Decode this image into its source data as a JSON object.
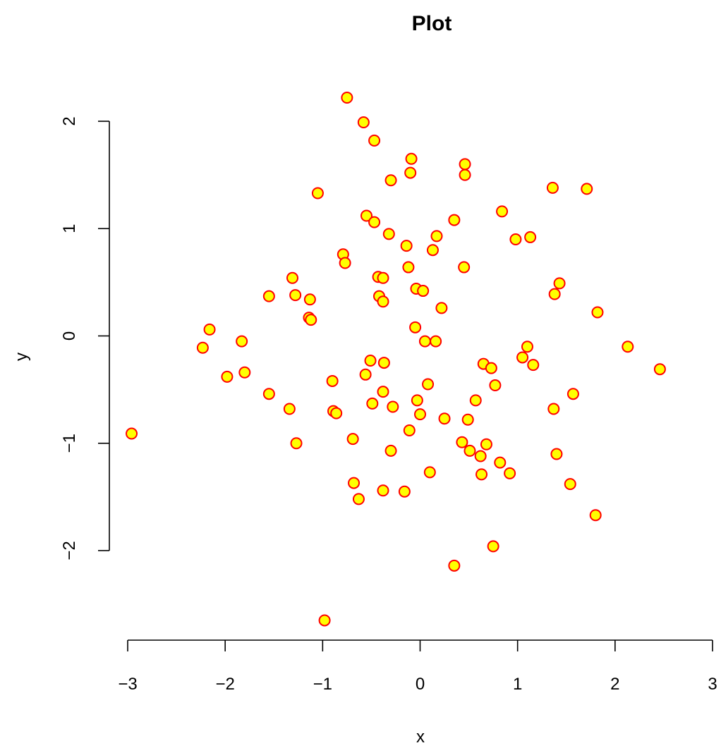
{
  "chart_data": {
    "type": "scatter",
    "title": "Plot",
    "xlabel": "x",
    "ylabel": "y",
    "xlim": [
      -3,
      3
    ],
    "ylim": [
      -2.7,
      2.25
    ],
    "x_ticks": [
      -3,
      -2,
      -1,
      0,
      1,
      2,
      3
    ],
    "x_tick_labels": [
      "−3",
      "−2",
      "−1",
      "0",
      "1",
      "2",
      "3"
    ],
    "y_ticks": [
      -2,
      -1,
      0,
      1,
      2
    ],
    "y_tick_labels": [
      "−2",
      "−1",
      "0",
      "1",
      "2"
    ],
    "grid": false,
    "marker": {
      "shape": "circle",
      "fill": "#ffff00",
      "edge": "#ff0000"
    },
    "points": [
      [
        -0.75,
        2.22
      ],
      [
        -0.58,
        1.99
      ],
      [
        -0.47,
        1.82
      ],
      [
        -0.09,
        1.65
      ],
      [
        0.46,
        1.6
      ],
      [
        -0.1,
        1.52
      ],
      [
        0.46,
        1.5
      ],
      [
        -0.3,
        1.45
      ],
      [
        -1.05,
        1.33
      ],
      [
        1.36,
        1.38
      ],
      [
        1.71,
        1.37
      ],
      [
        0.84,
        1.16
      ],
      [
        -0.55,
        1.12
      ],
      [
        0.35,
        1.08
      ],
      [
        -0.47,
        1.06
      ],
      [
        -0.32,
        0.95
      ],
      [
        0.17,
        0.93
      ],
      [
        0.98,
        0.9
      ],
      [
        1.13,
        0.92
      ],
      [
        -0.14,
        0.84
      ],
      [
        0.13,
        0.8
      ],
      [
        -0.79,
        0.76
      ],
      [
        -0.77,
        0.68
      ],
      [
        -0.12,
        0.64
      ],
      [
        0.45,
        0.64
      ],
      [
        -1.31,
        0.54
      ],
      [
        -0.43,
        0.55
      ],
      [
        -0.38,
        0.54
      ],
      [
        1.43,
        0.49
      ],
      [
        -0.04,
        0.44
      ],
      [
        0.03,
        0.42
      ],
      [
        1.38,
        0.39
      ],
      [
        -1.55,
        0.37
      ],
      [
        -1.28,
        0.38
      ],
      [
        -0.42,
        0.37
      ],
      [
        -1.13,
        0.34
      ],
      [
        -0.38,
        0.32
      ],
      [
        0.22,
        0.26
      ],
      [
        1.82,
        0.22
      ],
      [
        -1.14,
        0.17
      ],
      [
        -1.12,
        0.15
      ],
      [
        -0.05,
        0.08
      ],
      [
        -2.16,
        0.06
      ],
      [
        -1.83,
        -0.05
      ],
      [
        0.05,
        -0.05
      ],
      [
        0.16,
        -0.05
      ],
      [
        -2.23,
        -0.11
      ],
      [
        1.1,
        -0.1
      ],
      [
        2.13,
        -0.1
      ],
      [
        1.05,
        -0.2
      ],
      [
        -0.51,
        -0.23
      ],
      [
        -0.37,
        -0.25
      ],
      [
        0.65,
        -0.26
      ],
      [
        1.16,
        -0.27
      ],
      [
        0.73,
        -0.3
      ],
      [
        2.46,
        -0.31
      ],
      [
        -1.8,
        -0.34
      ],
      [
        -0.56,
        -0.36
      ],
      [
        -1.98,
        -0.38
      ],
      [
        -0.9,
        -0.42
      ],
      [
        0.08,
        -0.45
      ],
      [
        0.77,
        -0.46
      ],
      [
        -0.38,
        -0.52
      ],
      [
        -1.55,
        -0.54
      ],
      [
        1.57,
        -0.54
      ],
      [
        -0.03,
        -0.6
      ],
      [
        0.57,
        -0.6
      ],
      [
        -0.49,
        -0.63
      ],
      [
        -0.28,
        -0.66
      ],
      [
        -1.34,
        -0.68
      ],
      [
        1.37,
        -0.68
      ],
      [
        -0.89,
        -0.7
      ],
      [
        -0.86,
        -0.72
      ],
      [
        0.0,
        -0.73
      ],
      [
        0.25,
        -0.77
      ],
      [
        0.49,
        -0.78
      ],
      [
        -0.11,
        -0.88
      ],
      [
        -2.96,
        -0.91
      ],
      [
        -0.69,
        -0.96
      ],
      [
        -1.27,
        -1.0
      ],
      [
        0.43,
        -0.99
      ],
      [
        0.68,
        -1.01
      ],
      [
        -0.3,
        -1.07
      ],
      [
        0.51,
        -1.07
      ],
      [
        1.4,
        -1.1
      ],
      [
        0.62,
        -1.12
      ],
      [
        0.82,
        -1.18
      ],
      [
        0.1,
        -1.27
      ],
      [
        0.63,
        -1.29
      ],
      [
        0.92,
        -1.28
      ],
      [
        -0.68,
        -1.37
      ],
      [
        1.54,
        -1.38
      ],
      [
        -0.38,
        -1.44
      ],
      [
        -0.16,
        -1.45
      ],
      [
        -0.63,
        -1.52
      ],
      [
        1.8,
        -1.67
      ],
      [
        0.75,
        -1.96
      ],
      [
        0.35,
        -2.14
      ],
      [
        -0.98,
        -2.65
      ]
    ]
  }
}
